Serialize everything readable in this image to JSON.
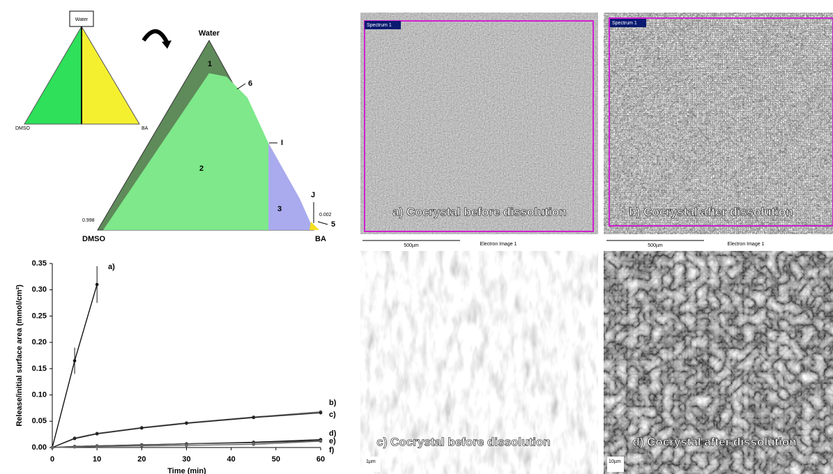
{
  "diagram": {
    "small_triangle": {
      "top": "Water",
      "left": "DMSO",
      "right": "BA"
    },
    "large_triangle": {
      "top": "Water",
      "left": "DMSO",
      "right": "BA",
      "regions": [
        "1",
        "2",
        "3"
      ],
      "markers": [
        "6",
        "I",
        "J",
        "5"
      ],
      "annotations": [
        "0.998",
        "0.002"
      ]
    }
  },
  "chart_data": {
    "type": "line",
    "x_label": "Time (min)",
    "y_label": "Release/initial surface area (mmol/cm²)",
    "xlim": [
      0,
      60
    ],
    "xticks": [
      0,
      10,
      20,
      30,
      40,
      50,
      60
    ],
    "ylim": [
      0,
      0.35
    ],
    "yticks": [
      {
        "value": 0,
        "label": "0.00"
      },
      {
        "value": 0.05,
        "label": "0.05"
      },
      {
        "value": 0.1,
        "label": "0.10"
      },
      {
        "value": 0.15,
        "label": "0.15"
      },
      {
        "value": 0.2,
        "label": "0.20"
      },
      {
        "value": 0.25,
        "label": "0.25"
      },
      {
        "value": 0.3,
        "label": "0.30"
      },
      {
        "value": 0.35,
        "label": "0.35"
      }
    ],
    "series": [
      {
        "name": "a)",
        "color": "#111111",
        "x": [
          0,
          5,
          10
        ],
        "values": [
          0,
          0.165,
          0.31
        ],
        "errors": [
          0,
          0.025,
          0.035
        ]
      },
      {
        "name": "b)",
        "color": "#777777",
        "x": [
          0,
          5,
          10,
          20,
          30,
          45,
          60
        ],
        "values": [
          0,
          0.018,
          0.027,
          0.038,
          0.047,
          0.058,
          0.068
        ]
      },
      {
        "name": "c)",
        "color": "#222222",
        "x": [
          0,
          5,
          10,
          20,
          30,
          45,
          60
        ],
        "values": [
          0,
          0.017,
          0.026,
          0.037,
          0.046,
          0.057,
          0.066
        ]
      },
      {
        "name": "d)",
        "color": "#111111",
        "x": [
          0,
          5,
          10,
          20,
          30,
          45,
          60
        ],
        "values": [
          0,
          0.002,
          0.003,
          0.005,
          0.007,
          0.01,
          0.015
        ]
      },
      {
        "name": "e)",
        "color": "#444444",
        "x": [
          0,
          5,
          10,
          20,
          30,
          45,
          60
        ],
        "values": [
          0,
          0.002,
          0.003,
          0.005,
          0.007,
          0.009,
          0.013
        ]
      },
      {
        "name": "f)",
        "color": "#666666",
        "x": [
          0,
          5,
          10,
          20,
          30,
          45,
          60
        ],
        "values": [
          0,
          0.001,
          0.002,
          0.003,
          0.004,
          0.006,
          0.012
        ]
      }
    ]
  },
  "images": [
    {
      "caption": "a) Cocrystal before dissolution",
      "spectrum": "Spectrum 1",
      "scale": "500µm",
      "info": "Electron Image 1"
    },
    {
      "caption": "b) Cocrystal after dissolution",
      "spectrum": "Spectrum 1",
      "scale": "500µm",
      "info": "Electron Image 1"
    },
    {
      "caption": "c) Cocrystal before dissolution",
      "scale": "1µm"
    },
    {
      "caption": "d) Cocrystal after dissolution",
      "scale": "10µm"
    }
  ]
}
